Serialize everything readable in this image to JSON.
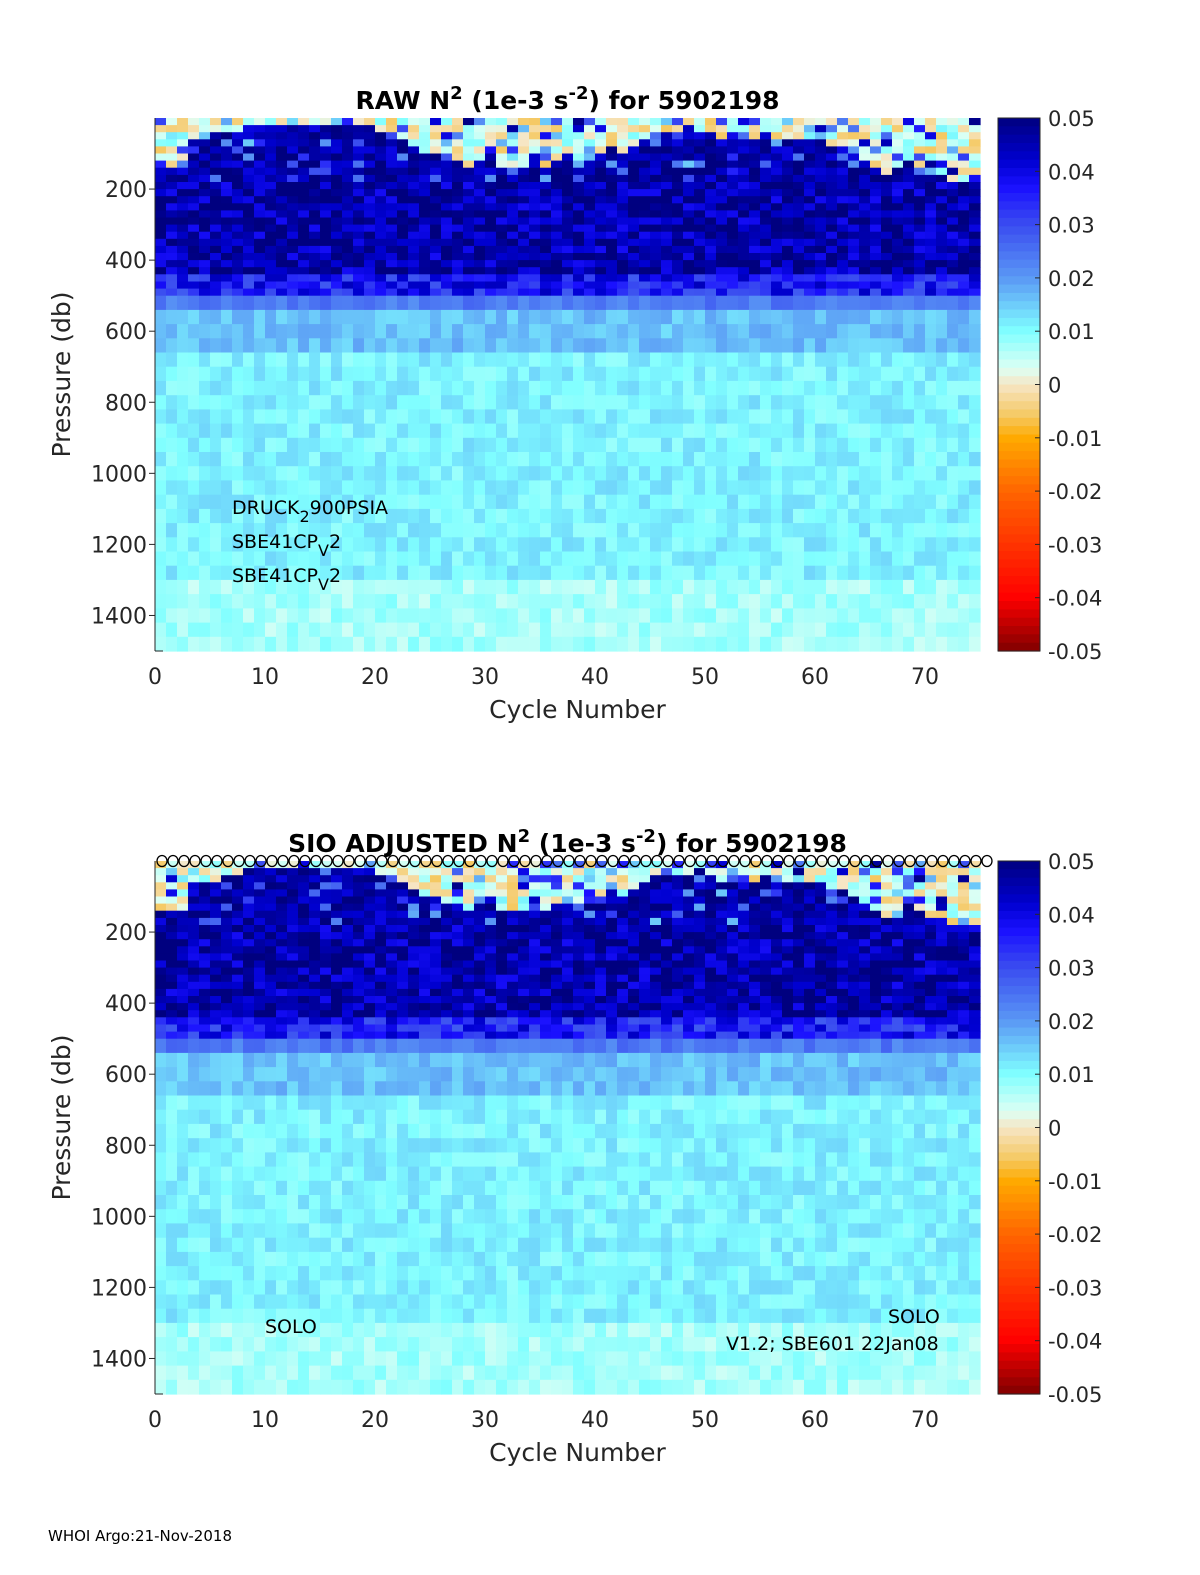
{
  "footer": "WHOI Argo:21-Nov-2018",
  "chart_data": [
    {
      "type": "heatmap",
      "title": {
        "pre": "RAW N",
        "sup1": "2",
        "mid": " (1e-3 s",
        "sup2": "-2",
        "post": ") for 5902198"
      },
      "xlabel": "Cycle Number",
      "ylabel": "Pressure (db)",
      "xlim": [
        0,
        75
      ],
      "ylim": [
        1500,
        0
      ],
      "xticks": [
        "0",
        "10",
        "20",
        "30",
        "40",
        "50",
        "60",
        "70"
      ],
      "yticks": [
        "200",
        "400",
        "600",
        "800",
        "1000",
        "1200",
        "1400"
      ],
      "colorbar": {
        "range": [
          -0.05,
          0.05
        ],
        "ticks": [
          "0.05",
          "0.04",
          "0.03",
          "0.02",
          "0.01",
          "0",
          "-0.01",
          "-0.02",
          "-0.03",
          "-0.04",
          "-0.05"
        ]
      },
      "annotations": [
        {
          "main": "DRUCK",
          "sub": "2",
          "rest": "900PSIA"
        },
        {
          "main": "SBE41CP",
          "sub": "V",
          "rest": "2"
        },
        {
          "main": "SBE41CP",
          "sub": "V",
          "rest": "2"
        }
      ],
      "seed": 7
    },
    {
      "type": "heatmap",
      "title": {
        "pre": "SIO  ADJUSTED N",
        "sup1": "2",
        "mid": " (1e-3 s",
        "sup2": "-2",
        "post": ") for 5902198"
      },
      "xlabel": "Cycle Number",
      "ylabel": "Pressure (db)",
      "xlim": [
        0,
        75
      ],
      "ylim": [
        1500,
        0
      ],
      "xticks": [
        "0",
        "10",
        "20",
        "30",
        "40",
        "50",
        "60",
        "70"
      ],
      "yticks": [
        "200",
        "400",
        "600",
        "800",
        "1000",
        "1200",
        "1400"
      ],
      "colorbar": {
        "range": [
          -0.05,
          0.05
        ],
        "ticks": [
          "0.05",
          "0.04",
          "0.03",
          "0.02",
          "0.01",
          "0",
          "-0.01",
          "-0.02",
          "-0.03",
          "-0.04",
          "-0.05"
        ]
      },
      "annotations_plain": [
        "SOLO",
        "V1.2; SBE601 22Jan08",
        "SOLO"
      ],
      "surface_markers": "o",
      "seed": 7
    }
  ],
  "profile_model": {
    "pressure_bands_db": [
      [
        0,
        180
      ],
      [
        180,
        440
      ],
      [
        440,
        500
      ],
      [
        500,
        560
      ],
      [
        560,
        660
      ],
      [
        660,
        1300
      ],
      [
        1300,
        1500
      ]
    ],
    "mean_values": [
      0.003,
      0.046,
      0.036,
      0.024,
      0.016,
      0.011,
      0.007
    ],
    "mixed_layer_depth_db": [
      150,
      150,
      150,
      60,
      60,
      60,
      50,
      40,
      25,
      20,
      20,
      20,
      20,
      20,
      20,
      20,
      20,
      20,
      20,
      30,
      40,
      50,
      60,
      80,
      100,
      110,
      120,
      130,
      140,
      120,
      100,
      140,
      150,
      140,
      110,
      150,
      130,
      100,
      140,
      120,
      100,
      90,
      100,
      80,
      60,
      40,
      40,
      40,
      40,
      40,
      50,
      60,
      60,
      60,
      60,
      50,
      60,
      60,
      60,
      70,
      70,
      80,
      90,
      100,
      120,
      150,
      160,
      140,
      130,
      150,
      160,
      170,
      180,
      180,
      180
    ]
  },
  "colors": {
    "colormap": [
      [
        0.05,
        "#00007f"
      ],
      [
        0.042,
        "#0000d0"
      ],
      [
        0.037,
        "#1a10ff"
      ],
      [
        0.03,
        "#3a4cf0"
      ],
      [
        0.02,
        "#5a98f5"
      ],
      [
        0.01,
        "#80ffff"
      ],
      [
        0.003,
        "#dcfff4"
      ],
      [
        0,
        "#f6e6c6"
      ],
      [
        -0.006,
        "#f5c860"
      ],
      [
        -0.01,
        "#ffaa00"
      ],
      [
        -0.02,
        "#ff6600"
      ],
      [
        -0.03,
        "#ff3300"
      ],
      [
        -0.04,
        "#ff0000"
      ],
      [
        -0.05,
        "#800000"
      ]
    ]
  }
}
